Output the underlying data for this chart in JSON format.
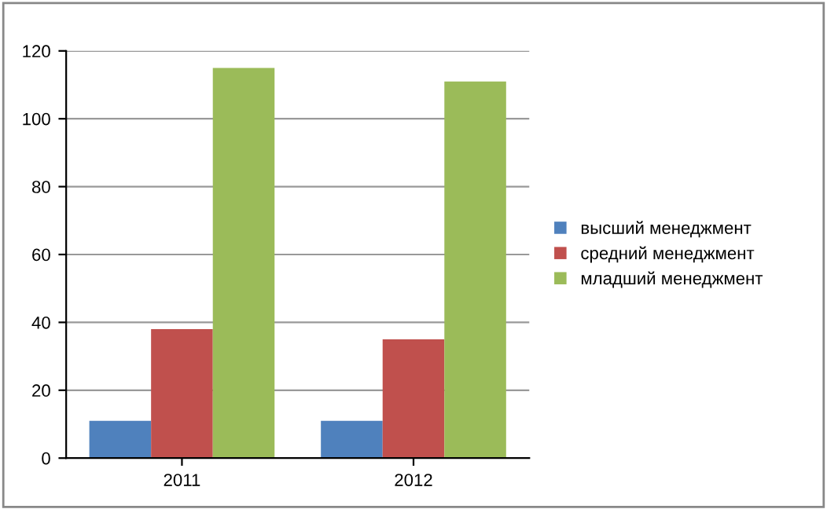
{
  "chart_data": {
    "type": "bar",
    "categories": [
      "2011",
      "2012"
    ],
    "series": [
      {
        "name": "высший менеджмент",
        "color": "#4f81bd",
        "values": [
          11,
          11
        ]
      },
      {
        "name": "средний менеджмент",
        "color": "#c0504d",
        "values": [
          38,
          35
        ]
      },
      {
        "name": "младший менеджмент",
        "color": "#9bbb59",
        "values": [
          115,
          111
        ]
      }
    ],
    "ylim": [
      0,
      120
    ],
    "yticks": [
      0,
      20,
      40,
      60,
      80,
      100,
      120
    ],
    "grid": "y",
    "legend": "right"
  }
}
